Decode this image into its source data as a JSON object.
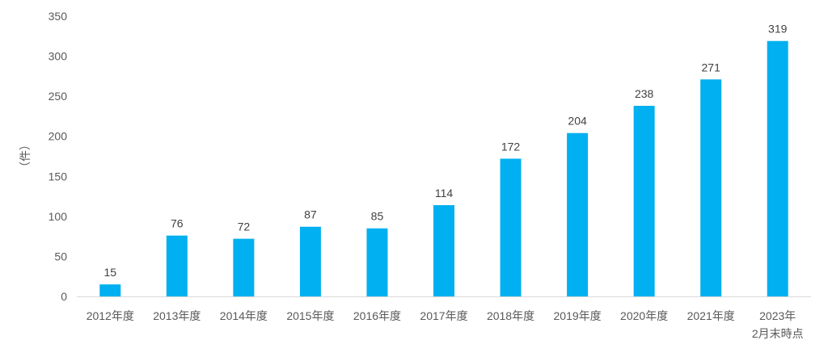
{
  "chart_data": {
    "type": "bar",
    "categories": [
      [
        "2012年度"
      ],
      [
        "2013年度"
      ],
      [
        "2014年度"
      ],
      [
        "2015年度"
      ],
      [
        "2016年度"
      ],
      [
        "2017年度"
      ],
      [
        "2018年度"
      ],
      [
        "2019年度"
      ],
      [
        "2020年度"
      ],
      [
        "2021年度"
      ],
      [
        "2023年",
        "2月末時点"
      ]
    ],
    "values": [
      15,
      76,
      72,
      87,
      85,
      114,
      172,
      204,
      238,
      271,
      319
    ],
    "ylabel": "（件）",
    "ylim": [
      0,
      350
    ],
    "yticks": [
      0,
      50,
      100,
      150,
      200,
      250,
      300,
      350
    ],
    "grid": false,
    "legend": "none",
    "bar_color": "#00B0F0",
    "axis_color": "#D9D9D9"
  }
}
